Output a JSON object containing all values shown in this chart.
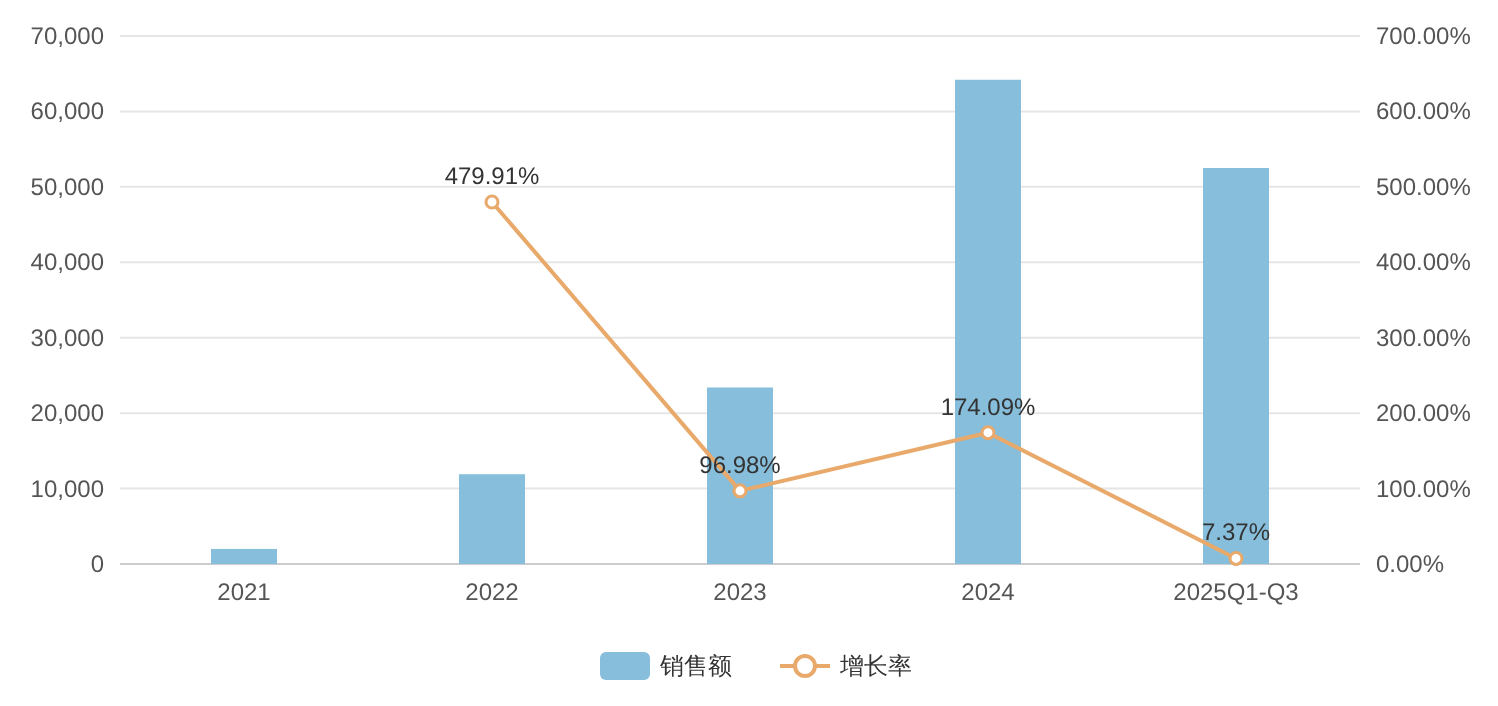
{
  "chart_data": {
    "type": "bar",
    "categories": [
      "2021",
      "2022",
      "2023",
      "2024",
      "2025Q1-Q3"
    ],
    "series": [
      {
        "name": "销售额",
        "color": "#86bedb",
        "values": [
          2000,
          11900,
          23400,
          64200,
          52500
        ]
      },
      {
        "name": "增长率",
        "type": "line",
        "axis": "y2",
        "color": "#e8a96a",
        "marker": "circle",
        "values": [
          null,
          479.91,
          96.98,
          174.09,
          7.37
        ],
        "value_labels": [
          null,
          "479.91%",
          "96.98%",
          "174.09%",
          "7.37%"
        ]
      }
    ],
    "ylim": [
      0,
      70000
    ],
    "yticks": [
      0,
      {
        "value": 10000,
        "label": "10,000"
      },
      {
        "value": 20000,
        "label": "20,000"
      },
      {
        "value": 30000,
        "label": "30,000"
      },
      {
        "value": 40000,
        "label": "40,000"
      },
      {
        "value": 50000,
        "label": "50,000"
      },
      {
        "value": 60000,
        "label": "60,000"
      },
      {
        "value": 70000,
        "label": "70,000"
      }
    ],
    "y2lim": [
      0,
      700
    ],
    "y2ticks": [
      {
        "value": 0,
        "label": "0.00%"
      },
      {
        "value": 100,
        "label": "100.00%"
      },
      {
        "value": 200,
        "label": "200.00%"
      },
      {
        "value": 300,
        "label": "300.00%"
      },
      {
        "value": 400,
        "label": "400.00%"
      },
      {
        "value": 500,
        "label": "500.00%"
      },
      {
        "value": 600,
        "label": "600.00%"
      },
      {
        "value": 700,
        "label": "700.00%"
      }
    ],
    "grid": "y",
    "legend": "bottom"
  }
}
